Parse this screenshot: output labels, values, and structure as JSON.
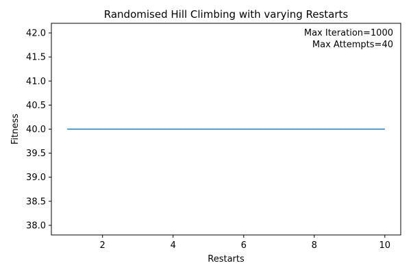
{
  "chart_data": {
    "type": "line",
    "title": "Randomised Hill Climbing with varying Restarts",
    "xlabel": "Restarts",
    "ylabel": "Fitness",
    "xlim": [
      0.55,
      10.45
    ],
    "ylim": [
      37.8,
      42.2
    ],
    "xticks": [
      2,
      4,
      6,
      8,
      10
    ],
    "xtick_labels": [
      "2",
      "4",
      "6",
      "8",
      "10"
    ],
    "yticks": [
      38.0,
      38.5,
      39.0,
      39.5,
      40.0,
      40.5,
      41.0,
      41.5,
      42.0
    ],
    "ytick_labels": [
      "38.0",
      "38.5",
      "39.0",
      "39.5",
      "40.0",
      "40.5",
      "41.0",
      "41.5",
      "42.0"
    ],
    "grid": false,
    "series": [
      {
        "name": "fitness",
        "color": "#1f77b4",
        "x": [
          1,
          2,
          3,
          4,
          5,
          6,
          7,
          8,
          9,
          10
        ],
        "y": [
          40,
          40,
          40,
          40,
          40,
          40,
          40,
          40,
          40,
          40
        ]
      }
    ],
    "annotations": [
      "Max Iteration=1000",
      "Max Attempts=40"
    ]
  }
}
